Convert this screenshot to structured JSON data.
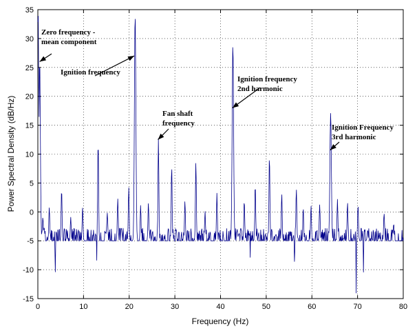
{
  "chart_data": {
    "type": "line",
    "title": "",
    "xlabel": "Frequency (Hz)",
    "ylabel": "Power Spectral Density (dB/Hz)",
    "xlim": [
      0,
      80
    ],
    "ylim": [
      -15,
      35
    ],
    "xticks": [
      "0",
      "10",
      "20",
      "30",
      "40",
      "50",
      "60",
      "70",
      "80"
    ],
    "yticks": [
      "-15",
      "-10",
      "-5",
      "0",
      "5",
      "10",
      "15",
      "20",
      "25",
      "30",
      "35"
    ],
    "line_color": "#00008b",
    "baseline_db": -5,
    "noise_amplitude_db": 2.2,
    "peaks": [
      {
        "x": 0.05,
        "y": 35
      },
      {
        "x": 0.4,
        "y": 26
      },
      {
        "x": 1.1,
        "y": -1
      },
      {
        "x": 2.5,
        "y": 1
      },
      {
        "x": 5.2,
        "y": 4.2
      },
      {
        "x": 7.2,
        "y": -1
      },
      {
        "x": 9.8,
        "y": 1
      },
      {
        "x": 13.2,
        "y": 12.6
      },
      {
        "x": 15.2,
        "y": 0
      },
      {
        "x": 17.5,
        "y": 2.5
      },
      {
        "x": 19.9,
        "y": 4.5
      },
      {
        "x": 21.3,
        "y": 34.5
      },
      {
        "x": 22.5,
        "y": 1
      },
      {
        "x": 24.2,
        "y": 1.5
      },
      {
        "x": 26.4,
        "y": 12.5
      },
      {
        "x": 29.3,
        "y": 7.9
      },
      {
        "x": 32.2,
        "y": 2
      },
      {
        "x": 34.6,
        "y": 8.5
      },
      {
        "x": 36.6,
        "y": 0
      },
      {
        "x": 39.2,
        "y": 3
      },
      {
        "x": 42.7,
        "y": 29
      },
      {
        "x": 45.2,
        "y": 2
      },
      {
        "x": 47.6,
        "y": 4.8
      },
      {
        "x": 50.7,
        "y": 9.8
      },
      {
        "x": 53.4,
        "y": 3.3
      },
      {
        "x": 56.6,
        "y": 4
      },
      {
        "x": 58.1,
        "y": 1
      },
      {
        "x": 59.8,
        "y": 1
      },
      {
        "x": 61.7,
        "y": 1.5
      },
      {
        "x": 64.1,
        "y": 17.4
      },
      {
        "x": 65.6,
        "y": 2
      },
      {
        "x": 67.8,
        "y": 1.5
      },
      {
        "x": 70.1,
        "y": 1
      },
      {
        "x": 72.2,
        "y": -3
      },
      {
        "x": 75.8,
        "y": 0
      },
      {
        "x": 77.9,
        "y": -2
      }
    ],
    "dips": [
      {
        "x": 3.8,
        "y": -11.2
      },
      {
        "x": 12.9,
        "y": -8.5
      },
      {
        "x": 46.5,
        "y": -8
      },
      {
        "x": 56.2,
        "y": -9
      },
      {
        "x": 69.7,
        "y": -14.3
      },
      {
        "x": 71.3,
        "y": -10.6
      }
    ],
    "annotations": [
      {
        "lines": [
          "Zero frequency -",
          "mean component"
        ],
        "target": [
          0.4,
          26
        ]
      },
      {
        "lines": [
          "Ignition frequency"
        ],
        "target": [
          21.1,
          27
        ]
      },
      {
        "lines": [
          "Fan shaft",
          "frequency"
        ],
        "target": [
          26.3,
          12.5
        ]
      },
      {
        "lines": [
          "Ignition frequency",
          "2nd harmonic"
        ],
        "target": [
          42.6,
          18
        ]
      },
      {
        "lines": [
          "Ignition Frequency",
          "3rd harmonic"
        ],
        "target": [
          64.0,
          10.7
        ]
      }
    ]
  }
}
